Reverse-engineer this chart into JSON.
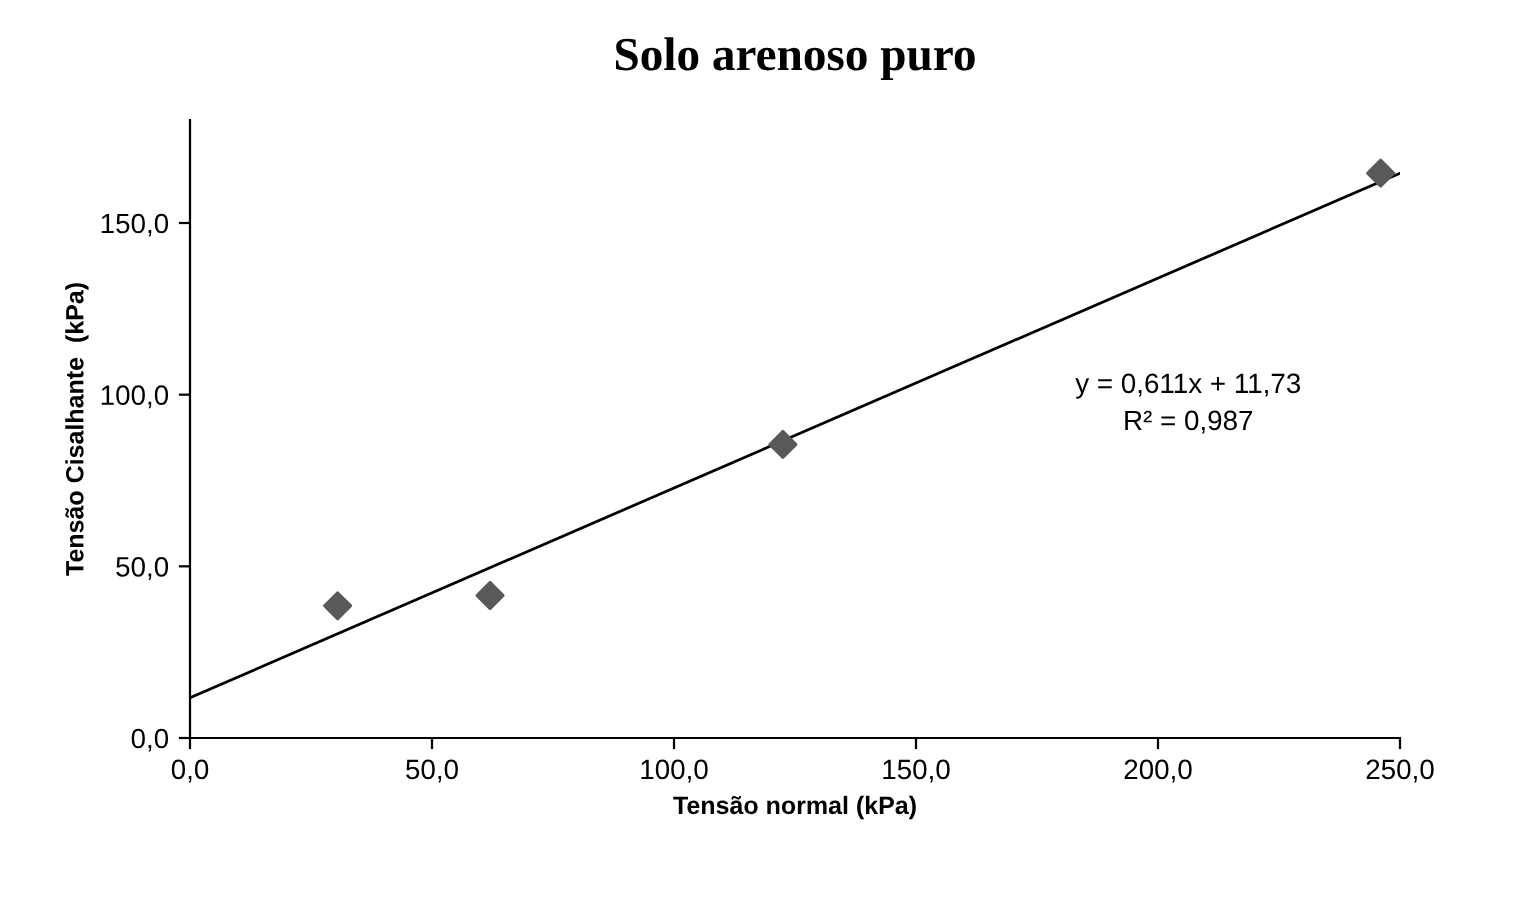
{
  "chart_data": {
    "type": "scatter",
    "title": "Solo arenoso puro",
    "xlabel": "Tensão normal (kPa)",
    "ylabel": "Tensão Cisalhante  (kPa)",
    "series": [
      {
        "color": "#595959",
        "marker": "diamond",
        "x": [
          30.5,
          62,
          122.5,
          246
        ],
        "values": [
          38.5,
          41.5,
          85.5,
          164.5
        ]
      },
      {
        "type": "line",
        "color": "#000000",
        "marker": "none",
        "line_style": "solid",
        "x": [
          0,
          250
        ],
        "values": [
          11.7,
          164.5
        ]
      }
    ],
    "annotations": [
      "y = 0,611x + 11,73",
      "R² = 0,987"
    ],
    "xlim": [
      0,
      250
    ],
    "ylim": [
      0,
      180
    ],
    "xticks": [
      {
        "value": 0,
        "label": "0,0"
      },
      {
        "value": 50,
        "label": "50,0"
      },
      {
        "value": 100,
        "label": "100,0"
      },
      {
        "value": 150,
        "label": "150,0"
      },
      {
        "value": 200,
        "label": "200,0"
      },
      {
        "value": 250,
        "label": "250,0"
      }
    ],
    "yticks": [
      {
        "value": 0,
        "label": "0,0"
      },
      {
        "value": 50,
        "label": "50,0"
      },
      {
        "value": 100,
        "label": "100,0"
      },
      {
        "value": 150,
        "label": "150,0"
      }
    ],
    "grid": false,
    "legend": false
  }
}
